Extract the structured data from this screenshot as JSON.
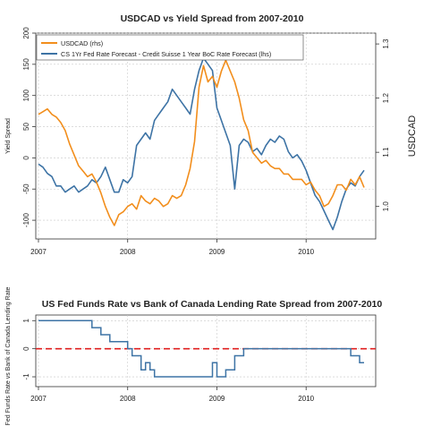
{
  "colors": {
    "usdcad": "#F28E1C",
    "spread": "#3D73A5",
    "zero_line": "#E02020",
    "grid": "#C8C8C8"
  },
  "chart_data": [
    {
      "type": "line",
      "title": "USDCAD vs Yield Spread from 2007-2010",
      "ylabel": "Yield Spread",
      "y2label": "USDCAD",
      "xlabel": "",
      "x_ticks": [
        "2007",
        "2008",
        "2009",
        "2010"
      ],
      "y_ticks": [
        200,
        150,
        100,
        50,
        0,
        -50,
        -100
      ],
      "y2_ticks": [
        1.3,
        1.2,
        1.1,
        1.0
      ],
      "ylim": [
        -130,
        200
      ],
      "y2lim": [
        0.94,
        1.32
      ],
      "xlim": [
        2006.97,
        2010.78
      ],
      "grid": true,
      "legend_position": "top-left",
      "series": [
        {
          "name": "USDCAD (rhs)",
          "axis": "right",
          "x": [
            2007.0,
            2007.05,
            2007.1,
            2007.15,
            2007.2,
            2007.25,
            2007.3,
            2007.35,
            2007.4,
            2007.45,
            2007.5,
            2007.55,
            2007.6,
            2007.65,
            2007.7,
            2007.75,
            2007.8,
            2007.85,
            2007.9,
            2007.95,
            2008.0,
            2008.05,
            2008.1,
            2008.15,
            2008.2,
            2008.25,
            2008.3,
            2008.35,
            2008.4,
            2008.45,
            2008.5,
            2008.55,
            2008.6,
            2008.65,
            2008.7,
            2008.75,
            2008.8,
            2008.85,
            2008.9,
            2008.95,
            2009.0,
            2009.05,
            2009.1,
            2009.15,
            2009.2,
            2009.25,
            2009.3,
            2009.35,
            2009.4,
            2009.45,
            2009.5,
            2009.55,
            2009.6,
            2009.65,
            2009.7,
            2009.75,
            2009.8,
            2009.85,
            2009.9,
            2009.95,
            2010.0,
            2010.05,
            2010.1,
            2010.15,
            2010.2,
            2010.25,
            2010.3,
            2010.35,
            2010.4,
            2010.45,
            2010.5,
            2010.55,
            2010.6,
            2010.65
          ],
          "values": [
            1.17,
            1.175,
            1.18,
            1.17,
            1.165,
            1.155,
            1.14,
            1.115,
            1.095,
            1.075,
            1.065,
            1.055,
            1.06,
            1.045,
            1.025,
            1.0,
            0.98,
            0.965,
            0.985,
            0.99,
            1.0,
            1.005,
            0.995,
            1.02,
            1.01,
            1.005,
            1.015,
            1.01,
            1.0,
            1.005,
            1.02,
            1.015,
            1.02,
            1.04,
            1.07,
            1.12,
            1.22,
            1.26,
            1.23,
            1.24,
            1.22,
            1.25,
            1.27,
            1.25,
            1.23,
            1.2,
            1.16,
            1.14,
            1.1,
            1.09,
            1.08,
            1.085,
            1.075,
            1.07,
            1.07,
            1.06,
            1.06,
            1.05,
            1.05,
            1.05,
            1.04,
            1.045,
            1.03,
            1.02,
            1.0,
            1.005,
            1.02,
            1.04,
            1.04,
            1.03,
            1.05,
            1.04,
            1.055,
            1.035
          ]
        },
        {
          "name": "CS 1Yr Fed Rate Forecast - Credit Suisse 1 Year BoC Rate Forecast (lhs)",
          "axis": "left",
          "x": [
            2007.0,
            2007.05,
            2007.1,
            2007.15,
            2007.2,
            2007.25,
            2007.3,
            2007.35,
            2007.4,
            2007.45,
            2007.5,
            2007.55,
            2007.6,
            2007.65,
            2007.7,
            2007.75,
            2007.8,
            2007.85,
            2007.9,
            2007.95,
            2008.0,
            2008.05,
            2008.1,
            2008.15,
            2008.2,
            2008.25,
            2008.3,
            2008.35,
            2008.4,
            2008.45,
            2008.5,
            2008.55,
            2008.6,
            2008.65,
            2008.7,
            2008.75,
            2008.8,
            2008.85,
            2008.9,
            2008.95,
            2009.0,
            2009.05,
            2009.1,
            2009.15,
            2009.2,
            2009.25,
            2009.3,
            2009.35,
            2009.4,
            2009.45,
            2009.5,
            2009.55,
            2009.6,
            2009.65,
            2009.7,
            2009.75,
            2009.8,
            2009.85,
            2009.9,
            2009.95,
            2010.0,
            2010.05,
            2010.1,
            2010.15,
            2010.2,
            2010.25,
            2010.3,
            2010.35,
            2010.4,
            2010.45,
            2010.5,
            2010.55,
            2010.6,
            2010.65
          ],
          "values": [
            -10,
            -15,
            -25,
            -30,
            -45,
            -45,
            -55,
            -50,
            -45,
            -55,
            -50,
            -45,
            -35,
            -40,
            -30,
            -15,
            -35,
            -55,
            -55,
            -35,
            -40,
            -30,
            20,
            30,
            40,
            30,
            60,
            70,
            80,
            90,
            110,
            100,
            90,
            80,
            70,
            110,
            140,
            160,
            150,
            140,
            80,
            60,
            40,
            20,
            -50,
            20,
            30,
            25,
            10,
            15,
            5,
            20,
            30,
            25,
            35,
            30,
            10,
            0,
            5,
            -5,
            -20,
            -40,
            -60,
            -70,
            -85,
            -100,
            -115,
            -95,
            -70,
            -50,
            -40,
            -45,
            -30,
            -20
          ]
        }
      ]
    },
    {
      "type": "line",
      "title": "US Fed Funds Rate vs Bank of Canada Lending Rate Spread from 2007-2010",
      "ylabel": "Fed Funds Rate vs Bank of Canada Lending Rate",
      "xlabel": "",
      "x_ticks": [
        "2007",
        "2008",
        "2009",
        "2010"
      ],
      "y_ticks": [
        1,
        0,
        -1
      ],
      "ylim": [
        -1.35,
        1.2
      ],
      "xlim": [
        2006.97,
        2010.78
      ],
      "grid": true,
      "reference_line": 0,
      "series": [
        {
          "name": "",
          "step": true,
          "x": [
            2007.0,
            2007.5,
            2007.6,
            2007.7,
            2007.8,
            2007.9,
            2008.0,
            2008.05,
            2008.15,
            2008.2,
            2008.25,
            2008.3,
            2008.9,
            2008.95,
            2009.0,
            2009.1,
            2009.2,
            2009.3,
            2010.0,
            2010.4,
            2010.5,
            2010.6,
            2010.65
          ],
          "values": [
            1.0,
            1.0,
            0.75,
            0.5,
            0.25,
            0.25,
            0.0,
            -0.25,
            -0.75,
            -0.5,
            -0.75,
            -1.0,
            -1.0,
            -0.5,
            -1.0,
            -0.75,
            -0.25,
            0.0,
            0.0,
            0.0,
            -0.25,
            -0.5,
            -0.5
          ]
        }
      ]
    }
  ]
}
